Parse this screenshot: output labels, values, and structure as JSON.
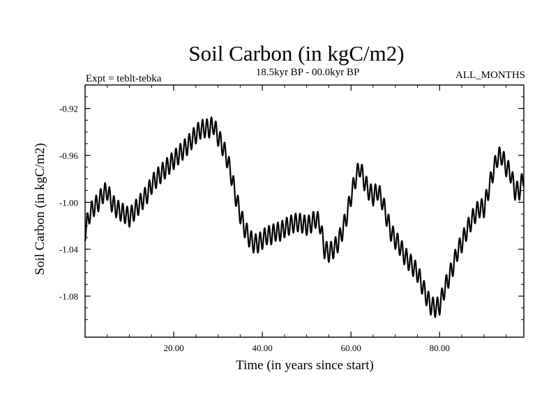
{
  "chart_data": {
    "type": "line",
    "title": "Soil Carbon (in kgC/m2)",
    "subtitle_left": "Expt = teblt-tebka",
    "subtitle_center": "18.5kyr BP - 00.0kyr BP",
    "subtitle_right": "ALL_MONTHS",
    "xlabel": "Time (in years since start)",
    "ylabel": "Soil Carbon (in kgC/m2)",
    "xlim": [
      0,
      99
    ],
    "ylim": [
      -1.115,
      -0.9
    ],
    "xticks": [
      {
        "value": 20,
        "label": "20.00"
      },
      {
        "value": 40,
        "label": "40.00"
      },
      {
        "value": 60,
        "label": "60.00"
      },
      {
        "value": 80,
        "label": "80.00"
      }
    ],
    "yticks": [
      {
        "value": -0.92,
        "label": "-0.92"
      },
      {
        "value": -0.96,
        "label": "-0.96"
      },
      {
        "value": -1.0,
        "label": "-1.00"
      },
      {
        "value": -1.04,
        "label": "-1.04"
      },
      {
        "value": -1.08,
        "label": "-1.08"
      }
    ],
    "series": [
      {
        "name": "soil_carbon",
        "seasonal_amplitude": 0.008,
        "x": [
          0,
          1,
          2,
          3,
          4,
          5,
          6,
          7,
          8,
          9,
          10,
          11,
          12,
          13,
          14,
          15,
          16,
          17,
          18,
          19,
          20,
          21,
          22,
          23,
          24,
          25,
          26,
          27,
          28,
          29,
          30,
          31,
          32,
          33,
          34,
          35,
          36,
          37,
          38,
          39,
          40,
          41,
          42,
          43,
          44,
          45,
          46,
          47,
          48,
          49,
          50,
          51,
          52,
          53,
          54,
          55,
          56,
          57,
          58,
          59,
          60,
          61,
          62,
          63,
          64,
          65,
          66,
          67,
          68,
          69,
          70,
          71,
          72,
          73,
          74,
          75,
          76,
          77,
          78,
          79,
          80,
          81,
          82,
          83,
          84,
          85,
          86,
          87,
          88,
          89,
          90,
          91,
          92,
          93,
          94,
          95,
          96,
          97,
          98,
          99
        ],
        "values": [
          -1.025,
          -1.01,
          -1.004,
          -1.0,
          -0.993,
          -0.99,
          -1.0,
          -1.005,
          -1.008,
          -1.01,
          -1.013,
          -1.008,
          -1.003,
          -0.998,
          -0.993,
          -0.985,
          -0.98,
          -0.976,
          -0.972,
          -0.968,
          -0.964,
          -0.96,
          -0.956,
          -0.952,
          -0.947,
          -0.942,
          -0.938,
          -0.937,
          -0.937,
          -0.934,
          -0.944,
          -0.952,
          -0.962,
          -0.977,
          -0.995,
          -1.01,
          -1.022,
          -1.03,
          -1.035,
          -1.035,
          -1.032,
          -1.028,
          -1.028,
          -1.025,
          -1.025,
          -1.022,
          -1.02,
          -1.018,
          -1.017,
          -1.018,
          -1.02,
          -1.018,
          -1.014,
          -1.018,
          -1.04,
          -1.043,
          -1.04,
          -1.035,
          -1.025,
          -1.012,
          -0.995,
          -0.98,
          -0.97,
          -0.982,
          -0.99,
          -0.995,
          -0.99,
          -0.998,
          -1.012,
          -1.025,
          -1.032,
          -1.037,
          -1.045,
          -1.05,
          -1.055,
          -1.06,
          -1.07,
          -1.08,
          -1.088,
          -1.09,
          -1.088,
          -1.075,
          -1.065,
          -1.055,
          -1.042,
          -1.035,
          -1.025,
          -1.017,
          -1.01,
          -1.005,
          -1.005,
          -0.99,
          -0.975,
          -0.962,
          -0.96,
          -0.97,
          -0.975,
          -0.99,
          -0.99,
          -0.978
        ]
      }
    ]
  }
}
